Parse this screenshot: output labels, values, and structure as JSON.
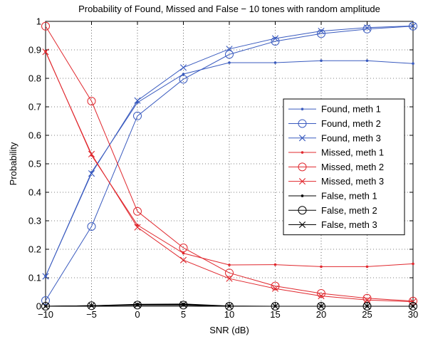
{
  "chart_data": {
    "type": "line",
    "title": "Probability of Found, Missed and False − 10 tones with random amplitude",
    "xlabel": "SNR (dB)",
    "ylabel": "Probability",
    "x": [
      -10,
      -5,
      0,
      5,
      10,
      15,
      20,
      25,
      30
    ],
    "xlim": [
      -10,
      30
    ],
    "ylim": [
      0,
      1
    ],
    "xticks": [
      -10,
      -5,
      0,
      5,
      10,
      15,
      20,
      25,
      30
    ],
    "xtick_labels": [
      "−10",
      "−5",
      "0",
      "5",
      "10",
      "15",
      "20",
      "25",
      "30"
    ],
    "yticks": [
      0,
      0.1,
      0.2,
      0.3,
      0.4,
      0.5,
      0.6,
      0.7,
      0.8,
      0.9,
      1
    ],
    "ytick_labels": [
      "0",
      "0.1",
      "0.2",
      "0.3",
      "0.4",
      "0.5",
      "0.6",
      "0.7",
      "0.8",
      "0.9",
      "1"
    ],
    "grid": true,
    "legend_position": "center-right",
    "series": [
      {
        "name": "Found, meth 1",
        "color": "#3a5bbf",
        "marker": "dot",
        "values": [
          0.105,
          0.47,
          0.715,
          0.815,
          0.855,
          0.855,
          0.862,
          0.862,
          0.852
        ]
      },
      {
        "name": "Found, meth 2",
        "color": "#3a5bbf",
        "marker": "circle",
        "values": [
          0.02,
          0.28,
          0.668,
          0.797,
          0.884,
          0.93,
          0.957,
          0.973,
          0.983
        ]
      },
      {
        "name": "Found, meth 3",
        "color": "#3a5bbf",
        "marker": "x",
        "values": [
          0.105,
          0.466,
          0.722,
          0.838,
          0.903,
          0.94,
          0.966,
          0.978,
          0.984
        ]
      },
      {
        "name": "Missed, meth 1",
        "color": "#e0282e",
        "marker": "dot",
        "values": [
          0.895,
          0.53,
          0.285,
          0.186,
          0.145,
          0.146,
          0.139,
          0.139,
          0.149
        ]
      },
      {
        "name": "Missed, meth 2",
        "color": "#e0282e",
        "marker": "circle",
        "values": [
          0.983,
          0.72,
          0.333,
          0.205,
          0.117,
          0.071,
          0.045,
          0.028,
          0.018
        ]
      },
      {
        "name": "Missed, meth 3",
        "color": "#e0282e",
        "marker": "x",
        "values": [
          0.893,
          0.534,
          0.277,
          0.162,
          0.097,
          0.062,
          0.036,
          0.022,
          0.016
        ]
      },
      {
        "name": "False, meth 1",
        "color": "#000000",
        "marker": "dot",
        "values": [
          0,
          0.002,
          0.007,
          0.008,
          0.001,
          0,
          0,
          0,
          0
        ]
      },
      {
        "name": "False, meth 2",
        "color": "#000000",
        "marker": "circle",
        "values": [
          0,
          0.002,
          0.004,
          0.004,
          0,
          0,
          0,
          0,
          0
        ]
      },
      {
        "name": "False, meth 3",
        "color": "#000000",
        "marker": "x",
        "values": [
          0,
          0.002,
          0.005,
          0.006,
          0,
          0,
          0,
          0,
          0
        ]
      }
    ]
  }
}
